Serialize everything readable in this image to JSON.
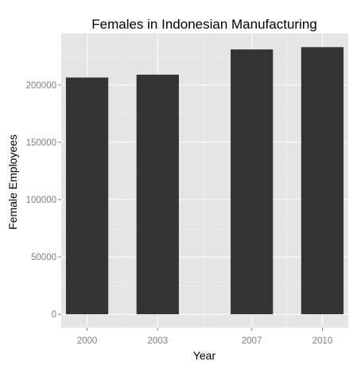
{
  "chart_data": {
    "type": "bar",
    "title": "Females in Indonesian Manufacturing",
    "xlabel": "Year",
    "ylabel": "Female Employees",
    "x": [
      2000,
      2003,
      2007,
      2010
    ],
    "x_ticks": [
      "2000",
      "2003",
      "2007",
      "2010"
    ],
    "values": [
      206500,
      209000,
      231000,
      233000
    ],
    "y_ticks": [
      "0",
      "50000",
      "100000",
      "150000",
      "200000"
    ],
    "xlim": [
      1998.9,
      2011.1
    ],
    "ylim": [
      -11700,
      245000
    ],
    "grid": true,
    "legend": "none",
    "colors": {
      "bar": "#333333",
      "panel": "#e5e5e5",
      "gridline": "#ffffff"
    }
  }
}
